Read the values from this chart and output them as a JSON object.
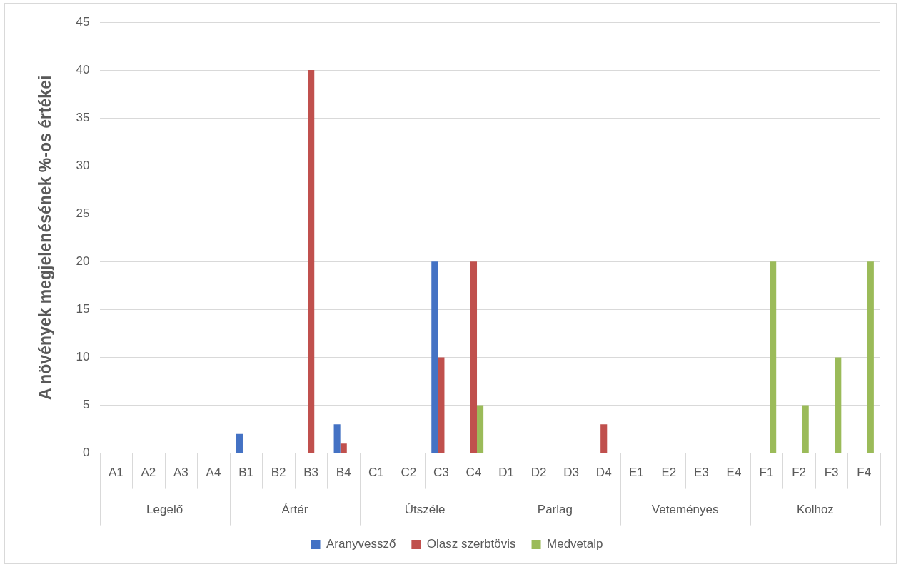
{
  "chart_data": {
    "type": "bar",
    "ylabel": "A növények megjelenésének %-os értékei",
    "categories": [
      "A1",
      "A2",
      "A3",
      "A4",
      "B1",
      "B2",
      "B3",
      "B4",
      "C1",
      "C2",
      "C3",
      "C4",
      "D1",
      "D2",
      "D3",
      "D4",
      "E1",
      "E2",
      "E3",
      "E4",
      "F1",
      "F2",
      "F3",
      "F4"
    ],
    "series": [
      {
        "name": "Aranyvessző",
        "color": "#4472c4",
        "values": [
          0,
          0,
          0,
          0,
          2,
          0,
          0,
          3,
          0,
          0,
          20,
          0,
          0,
          0,
          0,
          0,
          0,
          0,
          0,
          0,
          0,
          0,
          0,
          0
        ]
      },
      {
        "name": "Olasz szerbtövis",
        "color": "#c0504d",
        "values": [
          0,
          0,
          0,
          0,
          0,
          0,
          40,
          1,
          0,
          0,
          10,
          20,
          0,
          0,
          0,
          3,
          0,
          0,
          0,
          0,
          0,
          0,
          0,
          0
        ]
      },
      {
        "name": "Medvetalp",
        "color": "#9bbb59",
        "values": [
          0,
          0,
          0,
          0,
          0,
          0,
          0,
          0,
          0,
          0,
          0,
          5,
          0,
          0,
          0,
          0,
          0,
          0,
          0,
          0,
          20,
          5,
          10,
          20
        ]
      }
    ],
    "annotations": [
      "Legelő",
      "Ártér",
      "Útszéle",
      "Parlag",
      "Veteményes",
      "Kolhoz"
    ],
    "ylim": [
      0,
      45
    ],
    "yticks": [
      0,
      5,
      10,
      15,
      20,
      25,
      30,
      35,
      40,
      45
    ],
    "grid": "y",
    "legend": "bottom"
  }
}
